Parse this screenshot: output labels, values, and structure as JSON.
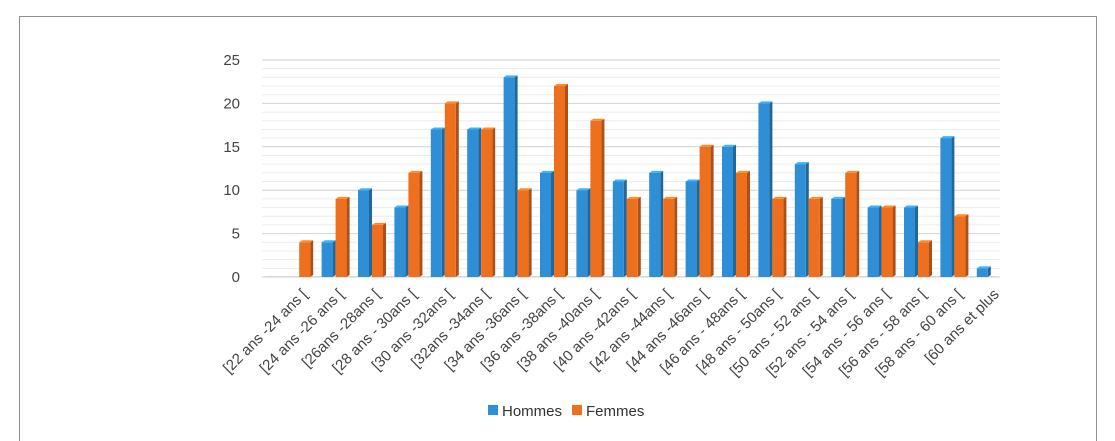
{
  "chart_data": {
    "type": "bar",
    "title": "",
    "xlabel": "",
    "ylabel": "",
    "ylim": [
      0,
      25
    ],
    "yticks": [
      0,
      5,
      10,
      15,
      20,
      25
    ],
    "grid": true,
    "legend_position": "bottom",
    "categories": [
      "[22 ans -24 ans [",
      "[24 ans -26 ans [",
      "[26ans -28ans [",
      "[28 ans - 30ans [",
      "[30 ans -32ans [",
      "[32ans -34ans [",
      "[34 ans -36ans [",
      "[36 ans -38ans [",
      "[38 ans -40ans [",
      "[40 ans -42ans [",
      "[42 ans -44ans [",
      "[44 ans -46ans [",
      "[46 ans - 48ans [",
      "[48 ans - 50ans [",
      "[50 ans - 52 ans [",
      "[52 ans - 54 ans [",
      "[54 ans - 56 ans [",
      "[56 ans - 58 ans [",
      "[58 ans - 60 ans [",
      "[60 ans et plus"
    ],
    "series": [
      {
        "name": "Hommes",
        "color": "#2e8fd6",
        "values": [
          0,
          4,
          10,
          8,
          17,
          17,
          23,
          12,
          10,
          11,
          12,
          11,
          15,
          20,
          13,
          9,
          8,
          8,
          16,
          1
        ]
      },
      {
        "name": "Femmes",
        "color": "#ee6f1e",
        "values": [
          4,
          9,
          6,
          12,
          20,
          17,
          10,
          22,
          18,
          9,
          9,
          15,
          12,
          9,
          9,
          12,
          8,
          4,
          7,
          0
        ]
      }
    ]
  }
}
